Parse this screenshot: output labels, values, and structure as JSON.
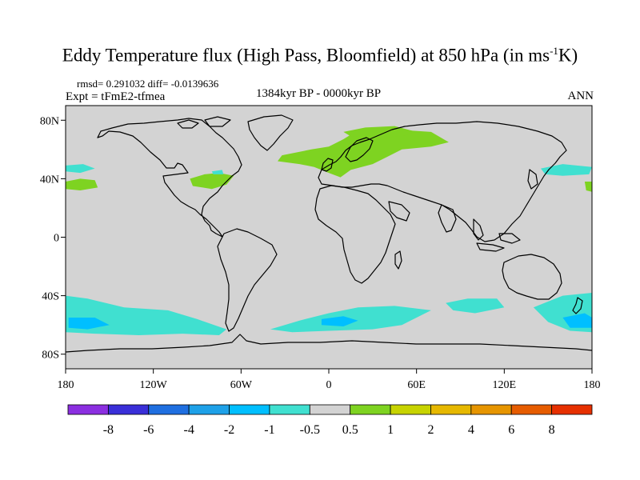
{
  "title": {
    "main": "Eddy Temperature flux (High Pass, Bloomfield) at 850 hPa (in ms",
    "superscript": "-1",
    "suffix": "K)"
  },
  "stats": {
    "rmsd_text": "rmsd= 0.291032 diff= -0.0139636",
    "experiment": "Expt = tFmE2-tfmea",
    "period": "1384kyr BP - 0000kyr BP",
    "season": "ANN"
  },
  "map": {
    "background_color": "#d3d3d3",
    "coast_color": "#000000",
    "lon_range": [
      -180,
      180
    ],
    "lat_range": [
      -90,
      90
    ],
    "lon_ticks": [
      {
        "value": -180,
        "label": "180"
      },
      {
        "value": -120,
        "label": "120W"
      },
      {
        "value": -60,
        "label": "60W"
      },
      {
        "value": 0,
        "label": "0"
      },
      {
        "value": 60,
        "label": "60E"
      },
      {
        "value": 120,
        "label": "120E"
      },
      {
        "value": 180,
        "label": "180"
      }
    ],
    "lat_ticks": [
      {
        "value": 80,
        "label": "80N"
      },
      {
        "value": 40,
        "label": "40N"
      },
      {
        "value": 0,
        "label": "0"
      },
      {
        "value": -40,
        "label": "40S"
      },
      {
        "value": -80,
        "label": "80S"
      }
    ],
    "anomaly_regions": [
      {
        "name": "north-atlantic-europe",
        "level": "0.5 to 1",
        "color": "#7ed321",
        "outline": [
          [
            -32,
            56
          ],
          [
            -12,
            60
          ],
          [
            0,
            62
          ],
          [
            10,
            67
          ],
          [
            18,
            72
          ],
          [
            40,
            74
          ],
          [
            70,
            72
          ],
          [
            82,
            65
          ],
          [
            70,
            62
          ],
          [
            50,
            60
          ],
          [
            40,
            55
          ],
          [
            30,
            50
          ],
          [
            15,
            46
          ],
          [
            8,
            41
          ],
          [
            0,
            44
          ],
          [
            -10,
            48
          ],
          [
            -20,
            50
          ],
          [
            -35,
            52
          ]
        ]
      },
      {
        "name": "scandinavia-barents",
        "level": "0.5 to 1",
        "color": "#7ed321",
        "outline": [
          [
            10,
            72
          ],
          [
            25,
            75
          ],
          [
            45,
            76
          ],
          [
            60,
            72
          ],
          [
            50,
            69
          ],
          [
            30,
            68
          ],
          [
            15,
            69
          ]
        ]
      },
      {
        "name": "us-east-coast",
        "level": "0.5 to 1",
        "color": "#7ed321",
        "outline": [
          [
            -95,
            40
          ],
          [
            -85,
            43
          ],
          [
            -75,
            44
          ],
          [
            -65,
            42
          ],
          [
            -70,
            36
          ],
          [
            -80,
            33
          ],
          [
            -93,
            35
          ]
        ]
      },
      {
        "name": "north-pacific-east",
        "level": "0.5 to 1",
        "color": "#7ed321",
        "outline": [
          [
            -180,
            38
          ],
          [
            -170,
            40
          ],
          [
            -160,
            39
          ],
          [
            -158,
            34
          ],
          [
            -170,
            32
          ],
          [
            -180,
            33
          ]
        ]
      },
      {
        "name": "north-pacific-west-edge",
        "level": "0.5 to 1",
        "color": "#7ed321",
        "outline": [
          [
            175,
            38
          ],
          [
            180,
            38
          ],
          [
            180,
            31
          ],
          [
            176,
            32
          ]
        ]
      },
      {
        "name": "north-pacific-cyan",
        "level": "-1 to -0.5",
        "color": "#40e0d0",
        "outline": [
          [
            -180,
            49
          ],
          [
            -168,
            50
          ],
          [
            -160,
            47
          ],
          [
            -170,
            44
          ],
          [
            -180,
            45
          ]
        ]
      },
      {
        "name": "nw-pacific-cyan",
        "level": "-1 to -0.5",
        "color": "#40e0d0",
        "outline": [
          [
            145,
            47
          ],
          [
            160,
            50
          ],
          [
            180,
            48
          ],
          [
            178,
            43
          ],
          [
            160,
            42
          ],
          [
            148,
            43
          ]
        ]
      },
      {
        "name": "labrador-cyan",
        "level": "-1 to -0.5",
        "color": "#40e0d0",
        "outline": [
          [
            -80,
            45
          ],
          [
            -73,
            46
          ],
          [
            -72,
            43
          ],
          [
            -79,
            43
          ]
        ]
      },
      {
        "name": "southern-ocean-pacific",
        "level": "-1 to -0.5",
        "color": "#40e0d0",
        "outline": [
          [
            -180,
            -40
          ],
          [
            -165,
            -42
          ],
          [
            -140,
            -48
          ],
          [
            -110,
            -50
          ],
          [
            -90,
            -56
          ],
          [
            -70,
            -63
          ],
          [
            -75,
            -67
          ],
          [
            -100,
            -66
          ],
          [
            -130,
            -67
          ],
          [
            -160,
            -66
          ],
          [
            -180,
            -65
          ]
        ]
      },
      {
        "name": "southern-ocean-atlantic-indian",
        "level": "-1 to -0.5",
        "color": "#40e0d0",
        "outline": [
          [
            -40,
            -63
          ],
          [
            -20,
            -57
          ],
          [
            0,
            -52
          ],
          [
            20,
            -48
          ],
          [
            45,
            -47
          ],
          [
            70,
            -50
          ],
          [
            50,
            -60
          ],
          [
            30,
            -63
          ],
          [
            0,
            -64
          ],
          [
            -25,
            -65
          ]
        ]
      },
      {
        "name": "southern-ocean-indian-east",
        "level": "-1 to -0.5",
        "color": "#40e0d0",
        "outline": [
          [
            80,
            -45
          ],
          [
            95,
            -42
          ],
          [
            115,
            -42
          ],
          [
            120,
            -48
          ],
          [
            100,
            -52
          ],
          [
            85,
            -50
          ]
        ]
      },
      {
        "name": "southern-ocean-tasman",
        "level": "-1 to -0.5",
        "color": "#40e0d0",
        "outline": [
          [
            140,
            -48
          ],
          [
            160,
            -40
          ],
          [
            180,
            -38
          ],
          [
            180,
            -65
          ],
          [
            165,
            -64
          ],
          [
            150,
            -58
          ]
        ]
      },
      {
        "name": "south-pacific-deep",
        "level": "-2 to -1",
        "color": "#00bfff",
        "outline": [
          [
            -178,
            -55
          ],
          [
            -160,
            -55
          ],
          [
            -150,
            -60
          ],
          [
            -165,
            -63
          ],
          [
            -178,
            -62
          ]
        ]
      },
      {
        "name": "south-atlantic-deep",
        "level": "-2 to -1",
        "color": "#00bfff",
        "outline": [
          [
            -5,
            -56
          ],
          [
            10,
            -54
          ],
          [
            20,
            -57
          ],
          [
            10,
            -61
          ],
          [
            -5,
            -60
          ]
        ]
      },
      {
        "name": "tasman-deep",
        "level": "-2 to -1",
        "color": "#00bfff",
        "outline": [
          [
            160,
            -55
          ],
          [
            175,
            -52
          ],
          [
            180,
            -55
          ],
          [
            180,
            -62
          ],
          [
            165,
            -62
          ]
        ]
      }
    ]
  },
  "colorbar": {
    "colors": [
      "#8b2fe0",
      "#3a2fd8",
      "#1f6fe0",
      "#1ea1e8",
      "#00bfff",
      "#40e0d0",
      "#d3d3d3",
      "#7ed321",
      "#c7d300",
      "#e6b800",
      "#e69500",
      "#e65c00",
      "#e63000"
    ],
    "labels": [
      "-8",
      "-6",
      "-4",
      "-2",
      "-1",
      "-0.5",
      "0.5",
      "1",
      "2",
      "4",
      "6",
      "8"
    ]
  }
}
